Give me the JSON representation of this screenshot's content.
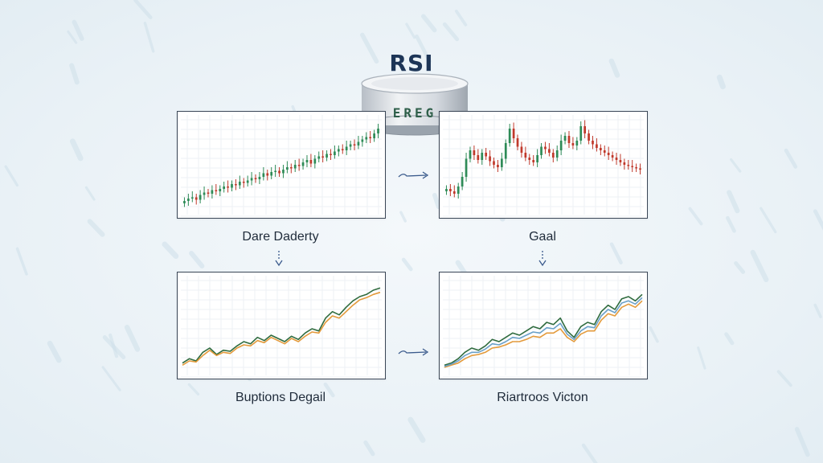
{
  "title": "RSI",
  "drum_label": "EREG",
  "panels": [
    {
      "id": "tl",
      "caption": "Dare Daderty",
      "kind": "candlestick"
    },
    {
      "id": "tr",
      "caption": "Gaal",
      "kind": "candlestick"
    },
    {
      "id": "bl",
      "caption": "Buptions Degail",
      "kind": "line"
    },
    {
      "id": "br",
      "caption": "Riartroos Victon",
      "kind": "line"
    }
  ],
  "colors": {
    "background": "#edf4f8",
    "title": "#1d3557",
    "panel_border": "#3a4656",
    "candle_up": "#2e8b57",
    "candle_down": "#c0392b",
    "line_primary": "#2f6b3e",
    "line_secondary": "#e39a3b",
    "line_tertiary": "#6aa0c8",
    "arrow": "#3a5a8c"
  },
  "chart_data": [
    {
      "type": "candlestick",
      "panel": "tl",
      "x": [
        1,
        2,
        3,
        4,
        5,
        6,
        7,
        8,
        9,
        10,
        11,
        12,
        13,
        14,
        15,
        16,
        17,
        18,
        19,
        20,
        21,
        22,
        23,
        24,
        25,
        26,
        27,
        28,
        29,
        30,
        31,
        32,
        33,
        34,
        35,
        36,
        37,
        38,
        39,
        40,
        41,
        42,
        43,
        44,
        45,
        46,
        47,
        48,
        49,
        50
      ],
      "close": [
        10,
        12,
        13,
        11,
        15,
        17,
        16,
        19,
        18,
        20,
        22,
        21,
        24,
        23,
        26,
        25,
        27,
        29,
        28,
        30,
        33,
        31,
        34,
        35,
        33,
        36,
        38,
        37,
        40,
        39,
        42,
        44,
        41,
        45,
        47,
        46,
        49,
        48,
        51,
        53,
        52,
        55,
        57,
        56,
        59,
        61,
        63,
        62,
        66,
        70
      ],
      "ylim": [
        0,
        80
      ]
    },
    {
      "type": "candlestick",
      "panel": "tr",
      "x": [
        1,
        2,
        3,
        4,
        5,
        6,
        7,
        8,
        9,
        10,
        11,
        12,
        13,
        14,
        15,
        16,
        17,
        18,
        19,
        20,
        21,
        22,
        23,
        24,
        25,
        26,
        27,
        28,
        29,
        30,
        31,
        32,
        33,
        34,
        35,
        36,
        37,
        38,
        39,
        40,
        41,
        42,
        43,
        44,
        45,
        46,
        47,
        48,
        49,
        50
      ],
      "close": [
        20,
        18,
        16,
        22,
        30,
        45,
        52,
        48,
        44,
        50,
        47,
        43,
        40,
        38,
        45,
        58,
        70,
        62,
        55,
        50,
        46,
        44,
        42,
        48,
        55,
        53,
        50,
        46,
        52,
        60,
        64,
        58,
        56,
        60,
        72,
        66,
        60,
        57,
        54,
        52,
        50,
        48,
        46,
        44,
        42,
        40,
        39,
        38,
        37,
        36
      ],
      "ylim": [
        0,
        80
      ]
    },
    {
      "type": "line",
      "panel": "bl",
      "x": [
        1,
        2,
        3,
        4,
        5,
        6,
        7,
        8,
        9,
        10,
        11,
        12,
        13,
        14,
        15,
        16,
        17,
        18,
        19,
        20,
        21,
        22,
        23,
        24,
        25,
        26,
        27,
        28,
        29,
        30
      ],
      "series": [
        {
          "values": [
            10,
            14,
            12,
            20,
            24,
            18,
            22,
            21,
            26,
            30,
            28,
            34,
            31,
            36,
            33,
            30,
            35,
            32,
            38,
            42,
            40,
            52,
            58,
            55,
            62,
            68,
            72,
            74,
            78,
            80
          ]
        },
        {
          "values": [
            8,
            12,
            11,
            17,
            22,
            17,
            20,
            19,
            24,
            27,
            26,
            31,
            29,
            34,
            31,
            28,
            33,
            30,
            35,
            39,
            38,
            48,
            54,
            52,
            58,
            64,
            69,
            71,
            74,
            76
          ]
        }
      ],
      "ylim": [
        0,
        90
      ]
    },
    {
      "type": "line",
      "panel": "br",
      "x": [
        1,
        2,
        3,
        4,
        5,
        6,
        7,
        8,
        9,
        10,
        11,
        12,
        13,
        14,
        15,
        16,
        17,
        18,
        19,
        20,
        21,
        22,
        23,
        24,
        25,
        26,
        27,
        28,
        29,
        30
      ],
      "series": [
        {
          "values": [
            8,
            10,
            14,
            20,
            24,
            22,
            26,
            32,
            30,
            34,
            38,
            36,
            40,
            44,
            42,
            48,
            46,
            52,
            40,
            34,
            44,
            48,
            46,
            58,
            64,
            60,
            70,
            72,
            68,
            74
          ]
        },
        {
          "values": [
            6,
            8,
            10,
            14,
            17,
            18,
            20,
            24,
            25,
            27,
            30,
            30,
            32,
            35,
            34,
            38,
            38,
            42,
            34,
            30,
            37,
            40,
            40,
            50,
            56,
            54,
            62,
            65,
            62,
            68
          ]
        },
        {
          "values": [
            7,
            9,
            12,
            17,
            20,
            20,
            23,
            28,
            27,
            30,
            34,
            33,
            36,
            39,
            38,
            43,
            42,
            47,
            37,
            32,
            40,
            44,
            43,
            54,
            60,
            57,
            66,
            68,
            65,
            71
          ]
        }
      ],
      "ylim": [
        0,
        90
      ]
    }
  ]
}
